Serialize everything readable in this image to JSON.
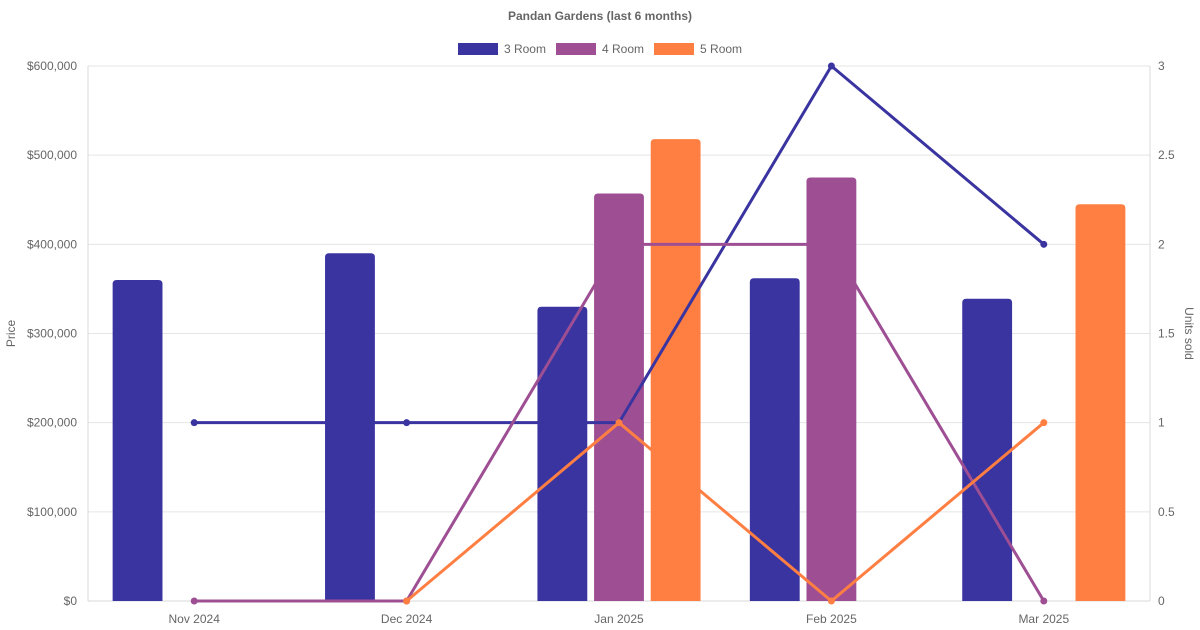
{
  "chart_data": {
    "type": "bar",
    "title": "Pandan Gardens (last 6 months)",
    "categories": [
      "Nov 2024",
      "Dec 2024",
      "Jan 2025",
      "Feb 2025",
      "Mar 2025"
    ],
    "y_left": {
      "label": "Price",
      "range": [
        0,
        600000
      ],
      "ticks": [
        "$0",
        "$100,000",
        "$200,000",
        "$300,000",
        "$400,000",
        "$500,000",
        "$600,000"
      ]
    },
    "y_right": {
      "label": "Units sold",
      "range": [
        0,
        3
      ],
      "ticks": [
        "0",
        "0.5",
        "1",
        "1.5",
        "2",
        "2.5",
        "3"
      ]
    },
    "grid": true,
    "legend_position": "top-center",
    "series": [
      {
        "name": "3 Room",
        "color": "#3A34A0",
        "price": [
          360000,
          390000,
          330000,
          362000,
          339000
        ],
        "units": [
          1,
          1,
          1,
          3,
          2
        ]
      },
      {
        "name": "4 Room",
        "color": "#9E4F93",
        "price": [
          null,
          null,
          457000,
          475000,
          null
        ],
        "units": [
          0,
          0,
          2,
          2,
          0
        ]
      },
      {
        "name": "5 Room",
        "color": "#FF7E42",
        "price": [
          null,
          null,
          518000,
          null,
          445000
        ],
        "units": [
          null,
          0,
          1,
          0,
          1
        ]
      }
    ]
  }
}
